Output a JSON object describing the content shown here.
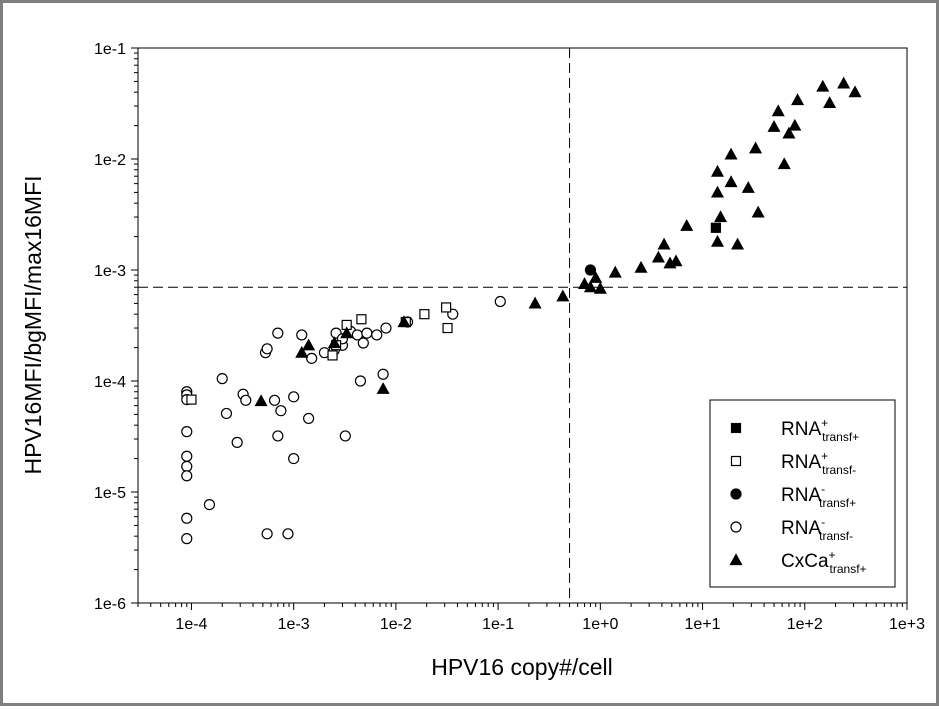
{
  "chart_data": {
    "type": "scatter",
    "xlabel": "HPV16 copy#/cell",
    "ylabel": "HPV16MFI/bgMFI/max16MFI",
    "x_scale": "log",
    "y_scale": "log",
    "xlim": [
      3e-05,
      1000
    ],
    "ylim": [
      1e-06,
      0.1
    ],
    "x_ticks": [
      0.0001,
      0.001,
      0.01,
      0.1,
      1,
      10,
      100,
      1000
    ],
    "x_tick_labels": [
      "1e-4",
      "1e-3",
      "1e-2",
      "1e-1",
      "1e+0",
      "1e+1",
      "1e+2",
      "1e+3"
    ],
    "y_ticks": [
      1e-06,
      1e-05,
      0.0001,
      0.001,
      0.01,
      0.1
    ],
    "y_tick_labels": [
      "1e-6",
      "1e-5",
      "1e-4",
      "1e-3",
      "1e-2",
      "1e-1"
    ],
    "reference_lines": {
      "vertical_x": 0.5,
      "horizontal_y": 0.0007
    },
    "grid": false,
    "legend_position": "bottom-right",
    "series": [
      {
        "name": "RNA+transf+",
        "legend": {
          "base": "RNA",
          "sup": "+",
          "sub": "transf+"
        },
        "marker": "square-filled",
        "points": [
          [
            13.5,
            0.0024
          ]
        ]
      },
      {
        "name": "RNA+transf-",
        "legend": {
          "base": "RNA",
          "sup": "+",
          "sub": "transf-"
        },
        "marker": "square-open",
        "points": [
          [
            0.0001,
            6.8e-05
          ],
          [
            0.0024,
            0.00017
          ],
          [
            0.0026,
            0.00021
          ],
          [
            0.0033,
            0.00032
          ],
          [
            0.0046,
            0.00036
          ],
          [
            0.0125,
            0.00034
          ],
          [
            0.019,
            0.0004
          ],
          [
            0.031,
            0.00046
          ],
          [
            0.032,
            0.0003
          ]
        ]
      },
      {
        "name": "RNA-transf+",
        "legend": {
          "base": "RNA",
          "sup": "-",
          "sub": "transf+"
        },
        "marker": "circle-filled",
        "points": [
          [
            0.8,
            0.001
          ]
        ]
      },
      {
        "name": "RNA-transf-",
        "legend": {
          "base": "RNA",
          "sup": "-",
          "sub": "transf-"
        },
        "marker": "circle-open",
        "points": [
          [
            9e-05,
            8e-05
          ],
          [
            9e-05,
            7.5e-05
          ],
          [
            9e-05,
            6.8e-05
          ],
          [
            9e-05,
            3.5e-05
          ],
          [
            9e-05,
            2.1e-05
          ],
          [
            9e-05,
            1.7e-05
          ],
          [
            9e-05,
            1.4e-05
          ],
          [
            9e-05,
            5.8e-06
          ],
          [
            9e-05,
            3.8e-06
          ],
          [
            0.00015,
            7.7e-06
          ],
          [
            0.0002,
            0.000105
          ],
          [
            0.00022,
            5.1e-05
          ],
          [
            0.00028,
            2.8e-05
          ],
          [
            0.00032,
            7.6e-05
          ],
          [
            0.00034,
            6.7e-05
          ],
          [
            0.00053,
            0.00018
          ],
          [
            0.00055,
            0.000195
          ],
          [
            0.00055,
            4.2e-06
          ],
          [
            0.00065,
            6.7e-05
          ],
          [
            0.0007,
            0.00027
          ],
          [
            0.0007,
            3.2e-05
          ],
          [
            0.00075,
            5.4e-05
          ],
          [
            0.00088,
            4.2e-06
          ],
          [
            0.001,
            7.2e-05
          ],
          [
            0.001,
            2e-05
          ],
          [
            0.0012,
            0.00026
          ],
          [
            0.0014,
            4.6e-05
          ],
          [
            0.0015,
            0.00016
          ],
          [
            0.002,
            0.00018
          ],
          [
            0.0025,
            0.00019
          ],
          [
            0.0026,
            0.00027
          ],
          [
            0.003,
            0.00021
          ],
          [
            0.003,
            0.00024
          ],
          [
            0.0032,
            3.2e-05
          ],
          [
            0.0036,
            0.00028
          ],
          [
            0.0042,
            0.00026
          ],
          [
            0.0045,
            0.0001
          ],
          [
            0.0048,
            0.00022
          ],
          [
            0.0052,
            0.00027
          ],
          [
            0.0065,
            0.00026
          ],
          [
            0.0075,
            0.000115
          ],
          [
            0.008,
            0.0003
          ],
          [
            0.013,
            0.00034
          ],
          [
            0.036,
            0.0004
          ],
          [
            0.105,
            0.00052
          ]
        ]
      },
      {
        "name": "CxCa+transf+",
        "legend": {
          "base": "CxCa",
          "sup": "+",
          "sub": "transf+"
        },
        "marker": "triangle-filled",
        "points": [
          [
            0.00048,
            6.6e-05
          ],
          [
            0.0012,
            0.00018
          ],
          [
            0.0014,
            0.00021
          ],
          [
            0.0025,
            0.00022
          ],
          [
            0.0033,
            0.00027
          ],
          [
            0.0075,
            8.5e-05
          ],
          [
            0.012,
            0.00034
          ],
          [
            0.23,
            0.0005
          ],
          [
            0.43,
            0.00058
          ],
          [
            0.7,
            0.00075
          ],
          [
            0.8,
            0.0007
          ],
          [
            0.9,
            0.00085
          ],
          [
            1.0,
            0.00068
          ],
          [
            1.4,
            0.00095
          ],
          [
            2.5,
            0.00105
          ],
          [
            3.7,
            0.0013
          ],
          [
            4.2,
            0.0017
          ],
          [
            4.8,
            0.00115
          ],
          [
            5.5,
            0.0012
          ],
          [
            7.0,
            0.0025
          ],
          [
            14,
            0.0018
          ],
          [
            14,
            0.005
          ],
          [
            14,
            0.0077
          ],
          [
            15,
            0.003
          ],
          [
            19,
            0.011
          ],
          [
            19,
            0.0062
          ],
          [
            22,
            0.0017
          ],
          [
            28,
            0.0055
          ],
          [
            33,
            0.0125
          ],
          [
            35,
            0.0033
          ],
          [
            50,
            0.0195
          ],
          [
            55,
            0.027
          ],
          [
            63,
            0.009
          ],
          [
            70,
            0.017
          ],
          [
            80,
            0.02
          ],
          [
            85,
            0.034
          ],
          [
            150,
            0.045
          ],
          [
            175,
            0.032
          ],
          [
            240,
            0.048
          ],
          [
            310,
            0.04
          ]
        ]
      }
    ]
  }
}
